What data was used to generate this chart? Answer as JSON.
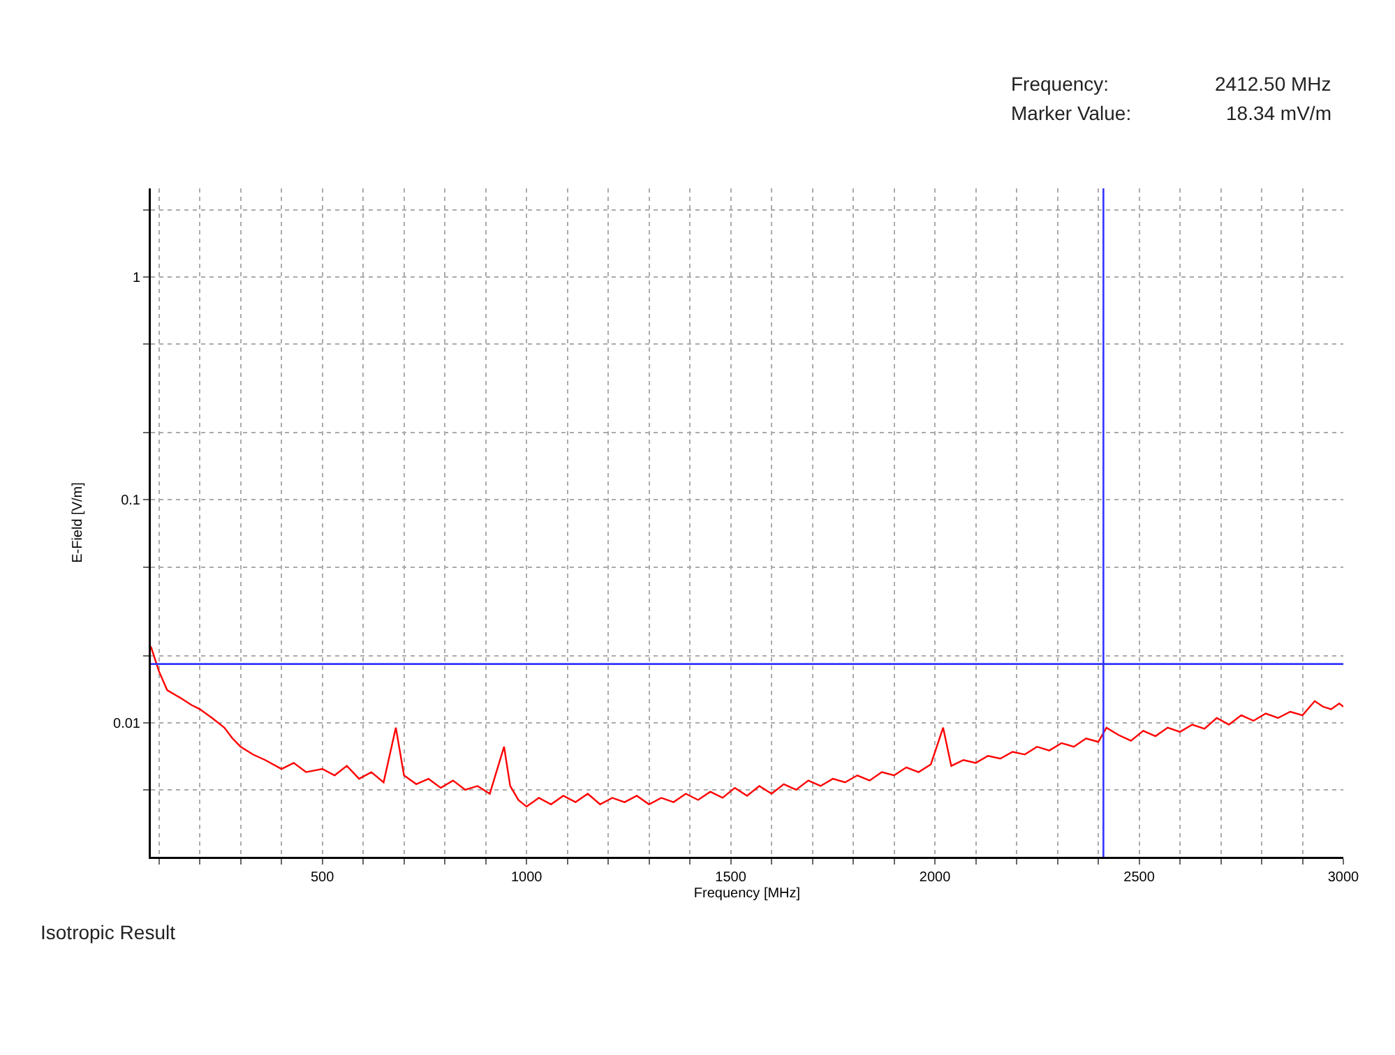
{
  "chart_data": {
    "type": "line",
    "xlabel": "Frequency [MHz]",
    "ylabel": "E-Field [V/m]",
    "log": "y",
    "grid": true,
    "line_style": "solid",
    "marker": "none",
    "xlim": [
      80,
      3000
    ],
    "ylim": [
      0.0025,
      2.5
    ],
    "xticks": [
      {
        "value": 100,
        "label": null
      },
      {
        "value": 200,
        "label": null
      },
      {
        "value": 300,
        "label": null
      },
      {
        "value": 400,
        "label": null
      },
      500,
      {
        "value": 600,
        "label": null
      },
      {
        "value": 700,
        "label": null
      },
      {
        "value": 800,
        "label": null
      },
      {
        "value": 900,
        "label": null
      },
      1000,
      {
        "value": 1100,
        "label": null
      },
      {
        "value": 1200,
        "label": null
      },
      {
        "value": 1300,
        "label": null
      },
      {
        "value": 1400,
        "label": null
      },
      1500,
      {
        "value": 1600,
        "label": null
      },
      {
        "value": 1700,
        "label": null
      },
      {
        "value": 1800,
        "label": null
      },
      {
        "value": 1900,
        "label": null
      },
      2000,
      {
        "value": 2100,
        "label": null
      },
      {
        "value": 2200,
        "label": null
      },
      {
        "value": 2300,
        "label": null
      },
      {
        "value": 2400,
        "label": null
      },
      2500,
      {
        "value": 2600,
        "label": null
      },
      {
        "value": 2700,
        "label": null
      },
      {
        "value": 2800,
        "label": null
      },
      {
        "value": 2900,
        "label": null
      },
      3000
    ],
    "yticks": [
      {
        "value": 0.005,
        "label": null
      },
      0.01,
      {
        "value": 0.02,
        "label": null
      },
      {
        "value": 0.05,
        "label": null
      },
      0.1,
      {
        "value": 0.2,
        "label": null
      },
      {
        "value": 0.5,
        "label": null
      },
      1,
      {
        "value": 2,
        "label": null
      }
    ],
    "x": [
      80,
      100,
      120,
      150,
      180,
      200,
      230,
      260,
      280,
      300,
      330,
      360,
      400,
      430,
      460,
      500,
      530,
      560,
      590,
      620,
      650,
      680,
      700,
      730,
      760,
      790,
      820,
      850,
      880,
      910,
      945,
      960,
      980,
      1000,
      1030,
      1060,
      1090,
      1120,
      1150,
      1180,
      1210,
      1240,
      1270,
      1300,
      1330,
      1360,
      1390,
      1420,
      1450,
      1480,
      1510,
      1540,
      1570,
      1600,
      1630,
      1660,
      1690,
      1720,
      1750,
      1780,
      1810,
      1840,
      1870,
      1900,
      1930,
      1960,
      1990,
      2020,
      2040,
      2070,
      2100,
      2130,
      2160,
      2190,
      2220,
      2250,
      2280,
      2310,
      2340,
      2370,
      2400,
      2420,
      2450,
      2480,
      2510,
      2540,
      2570,
      2600,
      2630,
      2660,
      2690,
      2720,
      2750,
      2780,
      2810,
      2840,
      2870,
      2900,
      2930,
      2950,
      2970,
      2990,
      3000
    ],
    "series": [
      {
        "color": "#ff0000",
        "values": [
          0.022,
          0.017,
          0.014,
          0.013,
          0.012,
          0.0115,
          0.0105,
          0.0095,
          0.0085,
          0.0078,
          0.0072,
          0.0068,
          0.0062,
          0.0066,
          0.006,
          0.0062,
          0.0058,
          0.0064,
          0.0056,
          0.006,
          0.0054,
          0.0095,
          0.0058,
          0.0053,
          0.0056,
          0.0051,
          0.0055,
          0.005,
          0.0052,
          0.0048,
          0.0078,
          0.0052,
          0.0045,
          0.0042,
          0.0046,
          0.0043,
          0.0047,
          0.0044,
          0.0048,
          0.0043,
          0.0046,
          0.0044,
          0.0047,
          0.0043,
          0.0046,
          0.0044,
          0.0048,
          0.0045,
          0.0049,
          0.0046,
          0.0051,
          0.0047,
          0.0052,
          0.0048,
          0.0053,
          0.005,
          0.0055,
          0.0052,
          0.0056,
          0.0054,
          0.0058,
          0.0055,
          0.006,
          0.0058,
          0.0063,
          0.006,
          0.0065,
          0.0095,
          0.0064,
          0.0068,
          0.0066,
          0.0071,
          0.0069,
          0.0074,
          0.0072,
          0.0078,
          0.0075,
          0.0081,
          0.0078,
          0.0085,
          0.0082,
          0.0095,
          0.0088,
          0.0083,
          0.0092,
          0.0087,
          0.0095,
          0.0091,
          0.0098,
          0.0094,
          0.0105,
          0.0098,
          0.0108,
          0.0102,
          0.011,
          0.0105,
          0.0112,
          0.0108,
          0.0125,
          0.0118,
          0.0115,
          0.0122,
          0.0118
        ]
      }
    ],
    "ref_lines": [
      {
        "axis": "x",
        "value": 2412.5,
        "color": "#3333ff"
      },
      {
        "axis": "y",
        "value": 0.01834,
        "color": "#3333ff"
      }
    ],
    "annotations": [
      "Frequency:",
      "2412.50 MHz",
      "Marker Value:",
      "18.34 mV/m",
      "Isotropic Result"
    ]
  }
}
